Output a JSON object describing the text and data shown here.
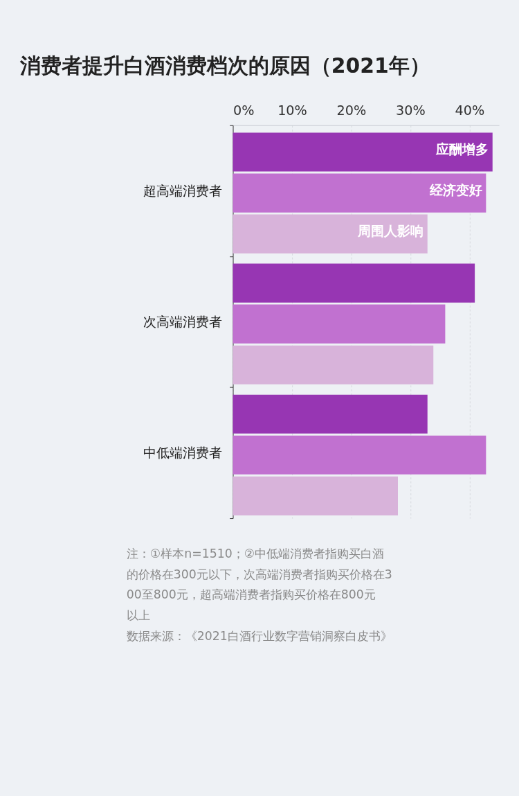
{
  "chart_data": {
    "type": "bar",
    "orientation": "horizontal",
    "title": "消费者提升白酒消费档次的原因（2021年）",
    "categories": [
      "超高端消费者",
      "次高端消费者",
      "中低端消费者"
    ],
    "series": [
      {
        "name": "应酬增多",
        "color": "#9736b3",
        "values": [
          43.9,
          40.9,
          32.9
        ]
      },
      {
        "name": "经济变好",
        "color": "#c171d0",
        "values": [
          42.8,
          35.9,
          42.8
        ]
      },
      {
        "name": "周围人影响",
        "color": "#d8b3da",
        "values": [
          32.9,
          33.9,
          27.9
        ]
      }
    ],
    "xlim": [
      0,
      45
    ],
    "xticks": [
      {
        "value": 0,
        "label": "0%"
      },
      {
        "value": 10,
        "label": "10%"
      },
      {
        "value": 20,
        "label": "20%"
      },
      {
        "value": 30,
        "label": "30%"
      },
      {
        "value": 40,
        "label": "40%"
      }
    ],
    "grid": "x",
    "legend": false,
    "annotations": [
      "注：①样本n=1510；②中低端消费者指购买白酒的价格在300元以下，次高端消费者指购买价格在300至800元，超高端消费者指购买价格在800元以上",
      "数据来源：《2021白酒行业数字营销洞察白皮书》"
    ]
  }
}
